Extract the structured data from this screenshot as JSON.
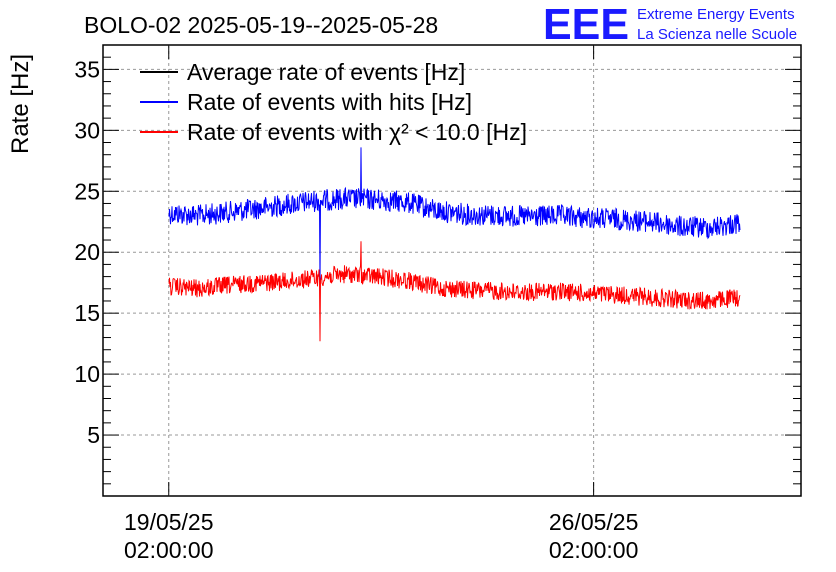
{
  "header": {
    "title": "BOLO-02 2025-05-19--2025-05-28",
    "logo_text": "EEE",
    "logo_line1": "Extreme Energy Events",
    "logo_line2": "La Scienza nelle Scuole"
  },
  "chart_data": {
    "type": "line",
    "title": "BOLO-02 2025-05-19--2025-05-28",
    "ylabel": "Rate [Hz]",
    "xlabel": "",
    "ylim": [
      0,
      37
    ],
    "xlim": [
      "2025-05-18T00:00",
      "2025-05-29T12:00"
    ],
    "grid": true,
    "legend_position": "top-left",
    "yticks": [
      5,
      10,
      15,
      20,
      25,
      30,
      35
    ],
    "xticks": [
      {
        "date": "2025-05-19T02:00",
        "line1": "19/05/25",
        "line2": "02:00:00"
      },
      {
        "date": "2025-05-26T02:00",
        "line1": "26/05/25",
        "line2": "02:00:00"
      }
    ],
    "series": [
      {
        "name": "Average rate of events [Hz]",
        "color": "#000000",
        "x": [],
        "values": []
      },
      {
        "name": "Rate of events with hits [Hz]",
        "color": "#0000ff",
        "noise": 0.9,
        "x": [
          "2025-05-19T02:00",
          "2025-05-19T14:00",
          "2025-05-20T02:00",
          "2025-05-20T14:00",
          "2025-05-21T00:00",
          "2025-05-21T12:00",
          "2025-05-22T00:00",
          "2025-05-22T12:00",
          "2025-05-23T00:00",
          "2025-05-23T12:00",
          "2025-05-24T00:00",
          "2025-05-24T12:00",
          "2025-05-25T00:00",
          "2025-05-25T12:00",
          "2025-05-26T00:00",
          "2025-05-26T12:00",
          "2025-05-27T00:00",
          "2025-05-27T12:00",
          "2025-05-28T00:00",
          "2025-05-28T12:00"
        ],
        "values": [
          23.2,
          23.0,
          23.3,
          23.6,
          23.9,
          24.2,
          24.4,
          24.3,
          24.1,
          23.4,
          23.1,
          23.0,
          22.9,
          23.0,
          22.8,
          22.7,
          22.5,
          22.1,
          22.0,
          22.4
        ],
        "spikes": [
          {
            "x": "2025-05-21T14:00",
            "value": 17.4
          },
          {
            "x": "2025-05-22T06:00",
            "value": 28.6
          }
        ]
      },
      {
        "name": "Rate of events with χ² < 10.0 [Hz]",
        "color": "#ff0000",
        "noise": 0.75,
        "x": [
          "2025-05-19T02:00",
          "2025-05-19T14:00",
          "2025-05-20T02:00",
          "2025-05-20T14:00",
          "2025-05-21T00:00",
          "2025-05-21T12:00",
          "2025-05-22T00:00",
          "2025-05-22T12:00",
          "2025-05-23T00:00",
          "2025-05-23T12:00",
          "2025-05-24T00:00",
          "2025-05-24T12:00",
          "2025-05-25T00:00",
          "2025-05-25T12:00",
          "2025-05-26T00:00",
          "2025-05-26T12:00",
          "2025-05-27T00:00",
          "2025-05-27T12:00",
          "2025-05-28T00:00",
          "2025-05-28T12:00"
        ],
        "values": [
          17.2,
          17.0,
          17.3,
          17.5,
          17.6,
          17.9,
          18.2,
          18.0,
          17.7,
          17.1,
          16.9,
          16.8,
          16.7,
          16.8,
          16.6,
          16.5,
          16.3,
          16.1,
          16.0,
          16.3
        ],
        "spikes": [
          {
            "x": "2025-05-21T14:00",
            "value": 12.7
          },
          {
            "x": "2025-05-22T06:00",
            "value": 20.9
          }
        ]
      }
    ]
  }
}
